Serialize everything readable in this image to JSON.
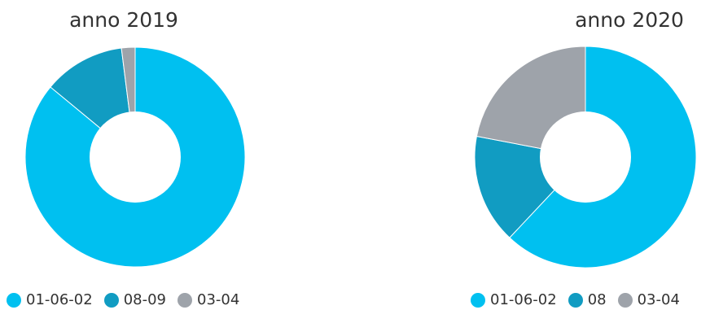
{
  "chart_data": [
    {
      "type": "pie",
      "title": "anno 2019",
      "categories": [
        "01-06-02",
        "08-09",
        "03-04"
      ],
      "values": [
        86,
        12,
        2
      ],
      "colors": [
        "#00c0f0",
        "#119cc2",
        "#9ea3aa"
      ],
      "legend_position": "bottom"
    },
    {
      "type": "pie",
      "title": "anno 2020",
      "categories": [
        "01-06-02",
        "08",
        "03-04"
      ],
      "values": [
        62,
        16,
        22
      ],
      "colors": [
        "#00c0f0",
        "#119cc2",
        "#9ea3aa"
      ],
      "legend_position": "bottom"
    }
  ]
}
